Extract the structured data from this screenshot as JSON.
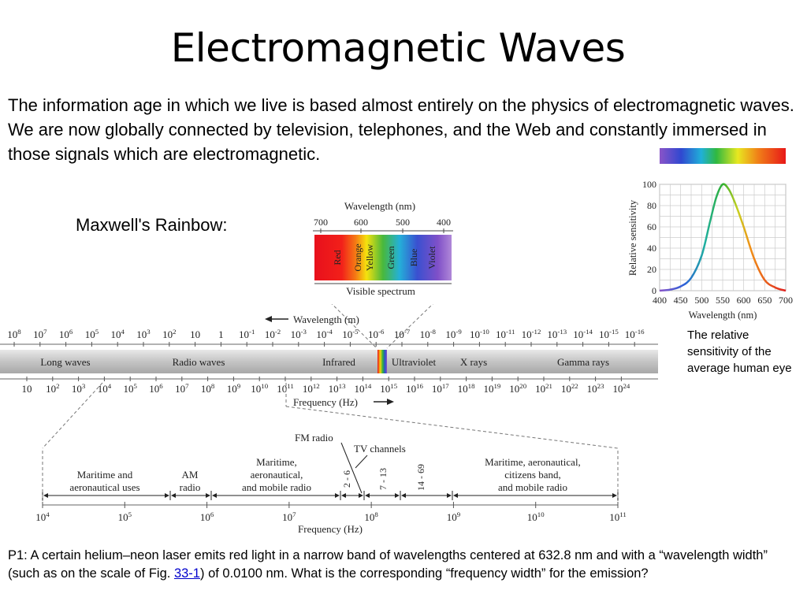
{
  "slide": {
    "title": "Electromagnetic Waves",
    "intro": "The information age in which we live is based almost entirely on the physics of electromagnetic waves. We are now globally connected by television, telephones, and the Web and constantly immersed in those signals which are electromagnetic.",
    "maxwell_label": "Maxwell's Rainbow:",
    "eye_caption": "The relative sensitivity of the average human eye",
    "problem": {
      "before_link": "P1: A certain helium–neon laser emits red light in a narrow band of wavelengths centered at 632.8 nm and with a “wavelength width” (such as on the scale of Fig. ",
      "link_text": "33-1",
      "after_link": ") of 0.0100 nm. What is the corresponding “frequency width” for the emission?"
    }
  },
  "visible_spectrum": {
    "axis_title": "Wavelength (nm)",
    "ticks": [
      "700",
      "600",
      "500",
      "400"
    ],
    "bands": [
      "Red",
      "Orange",
      "Yellow",
      "Green",
      "Blue",
      "Violet"
    ],
    "label": "Visible spectrum"
  },
  "em_spectrum": {
    "wavelength_label": "Wavelength (m)",
    "frequency_label": "Frequency (Hz)",
    "bands": [
      "Long waves",
      "Radio waves",
      "Infrared",
      "Ultraviolet",
      "X rays",
      "Gamma rays"
    ],
    "wavelength_ticks": [
      "10^8",
      "10^7",
      "10^6",
      "10^5",
      "10^4",
      "10^3",
      "10^2",
      "10",
      "1",
      "10^-1",
      "10^-2",
      "10^-3",
      "10^-4",
      "10^-5",
      "10^-6",
      "10^-7",
      "10^-8",
      "10^-9",
      "10^-10",
      "10^-11",
      "10^-12",
      "10^-13",
      "10^-14",
      "10^-15",
      "10^-16"
    ],
    "frequency_ticks": [
      "10",
      "10^2",
      "10^3",
      "10^4",
      "10^5",
      "10^6",
      "10^7",
      "10^8",
      "10^9",
      "10^10",
      "10^11",
      "10^12",
      "10^13",
      "10^14",
      "10^15",
      "10^16",
      "10^17",
      "10^18",
      "10^19",
      "10^20",
      "10^21",
      "10^22",
      "10^23",
      "10^24"
    ]
  },
  "radio_detail": {
    "fm_label": "FM radio",
    "tv_label": "TV channels",
    "frequency_label": "Frequency (Hz)",
    "segments": [
      {
        "lines": [
          "Maritime and",
          "aeronautical uses"
        ]
      },
      {
        "lines": [
          "AM",
          "radio"
        ]
      },
      {
        "lines": [
          "Maritime,",
          "aeronautical,",
          "and mobile radio"
        ]
      },
      {
        "lines": [
          "Maritime, aeronautical,",
          "citizens band,",
          "and mobile radio"
        ]
      }
    ],
    "channels": [
      "2 - 6",
      "7 - 13",
      "14 - 69"
    ],
    "ticks": [
      "10^4",
      "10^5",
      "10^6",
      "10^7",
      "10^8",
      "10^9",
      "10^10",
      "10^11"
    ]
  },
  "chart_data": {
    "type": "line",
    "xlabel": "Wavelength (nm)",
    "ylabel": "Relative sensitivity",
    "xlim": [
      400,
      700
    ],
    "ylim": [
      0,
      100
    ],
    "x_ticks": [
      400,
      450,
      500,
      550,
      600,
      650,
      700
    ],
    "y_ticks": [
      0,
      20,
      40,
      60,
      80,
      100
    ],
    "grid": true,
    "series": [
      {
        "x": [
          400,
          425,
          450,
          475,
          500,
          520,
          535,
          550,
          565,
          580,
          600,
          625,
          650,
          675,
          700
        ],
        "y": [
          0,
          1,
          4,
          12,
          33,
          65,
          88,
          100,
          95,
          82,
          60,
          30,
          10,
          3,
          0
        ]
      }
    ]
  }
}
